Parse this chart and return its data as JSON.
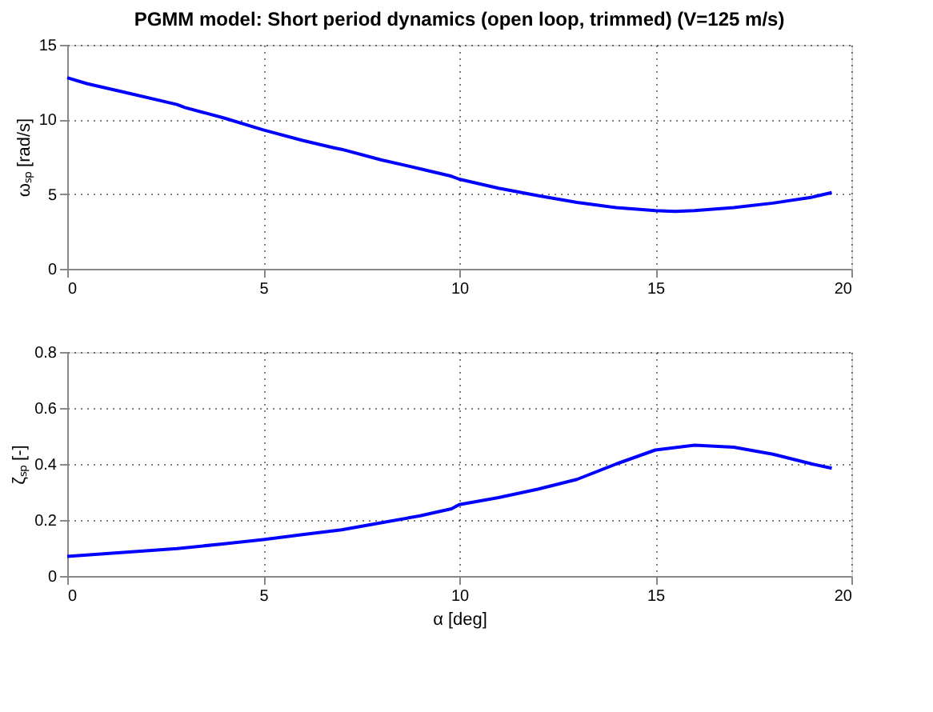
{
  "chart_data": [
    {
      "type": "line",
      "title": "PGMM model: Short period dynamics (open loop, trimmed) (V=125 m/s)",
      "ylabel": "ωₛₚ [rad/s]",
      "x": [
        0,
        0.5,
        1.5,
        2.8,
        3,
        4,
        5,
        6,
        6.8,
        7,
        8,
        9,
        9.8,
        10,
        11,
        12,
        13,
        14,
        15,
        15.5,
        16,
        17,
        18,
        19,
        19.5
      ],
      "series": [
        {
          "color": "#0000ff",
          "values": [
            12.8,
            12.4,
            11.8,
            11.0,
            10.8,
            10.1,
            9.3,
            8.6,
            8.1,
            8.0,
            7.3,
            6.7,
            6.2,
            6.0,
            5.4,
            4.9,
            4.45,
            4.1,
            3.9,
            3.85,
            3.9,
            4.1,
            4.4,
            4.8,
            5.1
          ]
        }
      ],
      "xlim": [
        0,
        20
      ],
      "xticks": [
        0,
        5,
        10,
        15,
        20
      ],
      "ylim": [
        0,
        15
      ],
      "yticks": [
        0,
        5,
        10,
        15
      ],
      "grid": true,
      "line_style": "solid",
      "marker": "none"
    },
    {
      "type": "line",
      "xlabel": "α [deg]",
      "ylabel": "ζₛₚ [-]",
      "x": [
        0,
        1,
        2.8,
        4,
        5,
        6,
        7,
        8,
        9,
        9.8,
        10,
        11,
        12,
        13,
        14,
        15,
        16,
        17,
        18,
        19,
        19.5
      ],
      "series": [
        {
          "color": "#0000ff",
          "values": [
            0.07,
            0.08,
            0.098,
            0.115,
            0.13,
            0.148,
            0.165,
            0.19,
            0.215,
            0.24,
            0.255,
            0.28,
            0.31,
            0.345,
            0.4,
            0.45,
            0.467,
            0.46,
            0.435,
            0.4,
            0.385
          ]
        }
      ],
      "xlim": [
        0,
        20
      ],
      "xticks": [
        0,
        5,
        10,
        15,
        20
      ],
      "ylim": [
        0,
        0.8
      ],
      "yticks": [
        0,
        0.2,
        0.4,
        0.6,
        0.8
      ],
      "grid": true,
      "line_style": "solid",
      "marker": "none"
    }
  ]
}
